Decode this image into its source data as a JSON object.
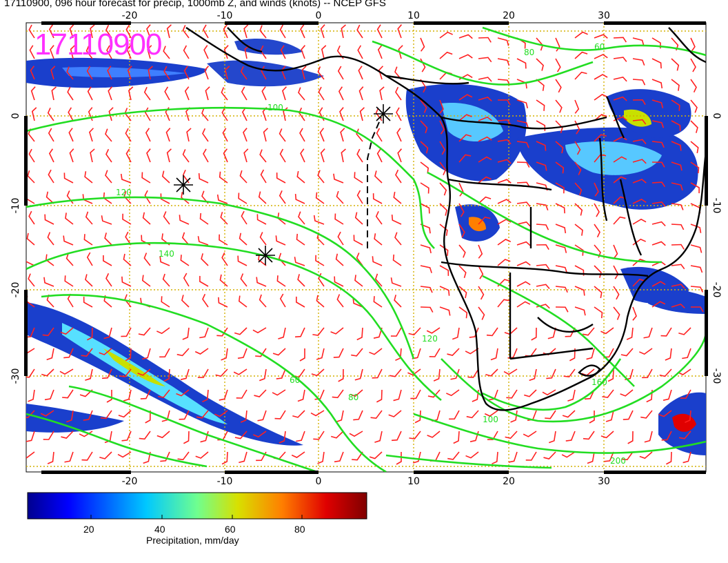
{
  "title": "17110900, 096 hour forecast for precip, 1000mb Z, and winds (knots) -- NCEP GFS",
  "stamp": "17110900",
  "map": {
    "lon_ticks_bottom": [
      "-20",
      "-10",
      "0",
      "10",
      "20",
      "30"
    ],
    "lon_ticks_top": [
      "-20",
      "-10",
      "0",
      "10",
      "20",
      "30"
    ],
    "lat_ticks_left": [
      "0",
      "-10",
      "-20",
      "-30"
    ],
    "lat_ticks_right": [
      "0",
      "-10",
      "-20",
      "-30"
    ],
    "contour_labels": [
      "100",
      "120",
      "140",
      "120",
      "80",
      "60",
      "100",
      "160",
      "200",
      "80",
      "60"
    ],
    "colors": {
      "contour": "#22dd22",
      "barb": "#ff2020",
      "coast": "#000000",
      "grid": "#d4b000",
      "stamp": "#ff30ff"
    }
  },
  "colorbar": {
    "ticks": [
      "20",
      "40",
      "60",
      "80"
    ],
    "label": "Precipitation, mm/day"
  }
}
